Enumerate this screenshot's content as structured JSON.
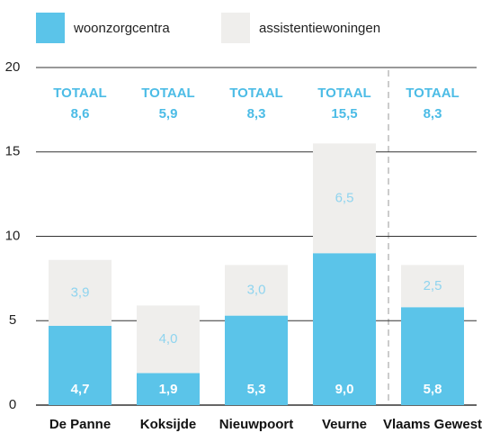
{
  "chart_data": {
    "type": "stacked_bar",
    "categories": [
      "De Panne",
      "Koksijde",
      "Nieuwpoort",
      "Veurne",
      "Vlaams Gewest"
    ],
    "series": [
      {
        "name": "woonzorgcentra",
        "color": "#5bc4e9",
        "values": [
          4.7,
          1.9,
          5.3,
          9.0,
          5.8
        ],
        "value_labels": [
          "4,7",
          "1,9",
          "5,3",
          "9,0",
          "5,8"
        ]
      },
      {
        "name": "assistentiewoningen",
        "color": "#efeeec",
        "values": [
          3.9,
          4.0,
          3.0,
          6.5,
          2.5
        ],
        "value_labels": [
          "3,9",
          "4,0",
          "3,0",
          "6,5",
          "2,5"
        ]
      }
    ],
    "totals": {
      "label": "TOTAAL",
      "values": [
        8.6,
        5.9,
        8.3,
        15.5,
        8.3
      ],
      "value_labels": [
        "8,6",
        "5,9",
        "8,3",
        "15,5",
        "8,3"
      ]
    },
    "ylim": [
      0,
      20
    ],
    "yticks": [
      0,
      5,
      10,
      15,
      20
    ],
    "grid": true
  }
}
